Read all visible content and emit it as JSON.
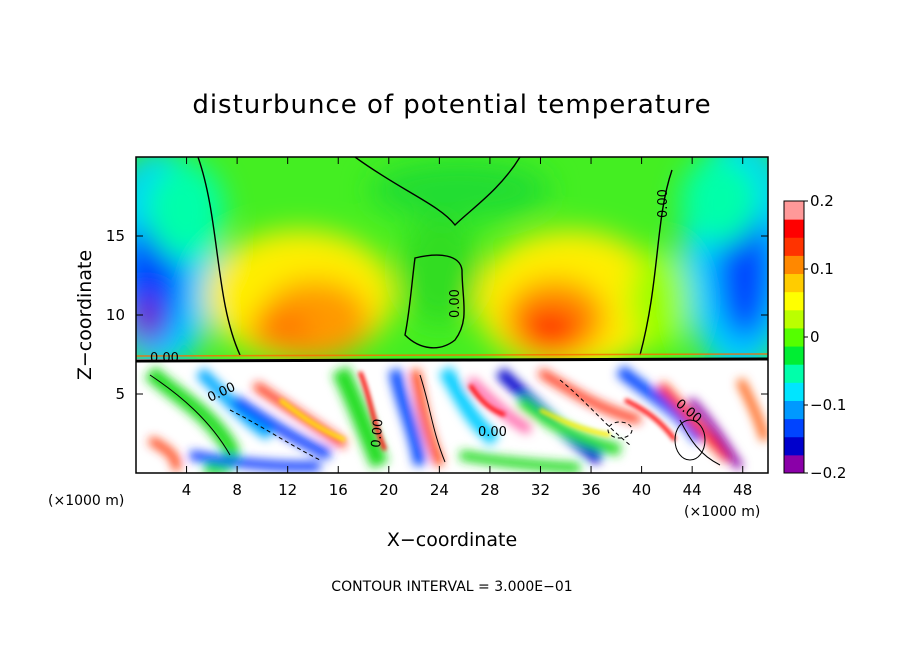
{
  "chart_data": {
    "type": "heatmap",
    "title": "disturbunce of potential temperature",
    "xlabel": "X−coordinate",
    "ylabel": "Z−coordinate",
    "x_unit": "(×1000 m)",
    "x_unit_right": "(×1000 m)",
    "xlim": [
      0,
      50
    ],
    "ylim": [
      0,
      20
    ],
    "x_ticks": [
      4,
      8,
      12,
      16,
      20,
      24,
      28,
      32,
      36,
      40,
      44,
      48
    ],
    "x_tick_labels": [
      "4",
      "8",
      "12",
      "16",
      "20",
      "24",
      "28",
      "32",
      "36",
      "40",
      "44",
      "48"
    ],
    "y_ticks": [
      5,
      10,
      15
    ],
    "y_tick_labels": [
      "5",
      "10",
      "15"
    ],
    "colorbar": {
      "range": [
        -0.2,
        0.2
      ],
      "ticks": [
        0.2,
        0.1,
        0,
        -0.1,
        -0.2
      ],
      "tick_labels": [
        "0.2",
        "0.1",
        "0",
        "−0.1",
        "−0.2"
      ],
      "colors": [
        "#8a00a8",
        "#0000cc",
        "#0044ff",
        "#0099ff",
        "#00e5ff",
        "#00ffaa",
        "#00ee33",
        "#55ff00",
        "#bbff00",
        "#ffff00",
        "#ffcc00",
        "#ff8800",
        "#ff3300",
        "#ff0000",
        "#ff9999"
      ]
    },
    "contour_interval_text": "CONTOUR INTERVAL = 3.000E−01",
    "contour_label": "0.00",
    "regions": [
      {
        "desc": "upper layer",
        "z": [
          7.3,
          20
        ]
      },
      {
        "desc": "lower turbulent layer",
        "z": [
          0,
          7.3
        ]
      }
    ],
    "features": [
      {
        "x": 2.0,
        "z": 10.5,
        "value": -0.18
      },
      {
        "x": 3.5,
        "z": 14.0,
        "value": -0.13
      },
      {
        "x": 46.5,
        "z": 13.0,
        "value": -0.14
      },
      {
        "x": 12.0,
        "z": 10.0,
        "value": 0.1
      },
      {
        "x": 15.0,
        "z": 11.0,
        "value": 0.12
      },
      {
        "x": 33.5,
        "z": 9.5,
        "value": 0.15
      },
      {
        "x": 31.5,
        "z": 11.0,
        "value": 0.11
      },
      {
        "x": 24.0,
        "z": 17.0,
        "value": 0.0
      },
      {
        "x": 25.0,
        "z": 11.0,
        "value": 0.0
      }
    ]
  }
}
